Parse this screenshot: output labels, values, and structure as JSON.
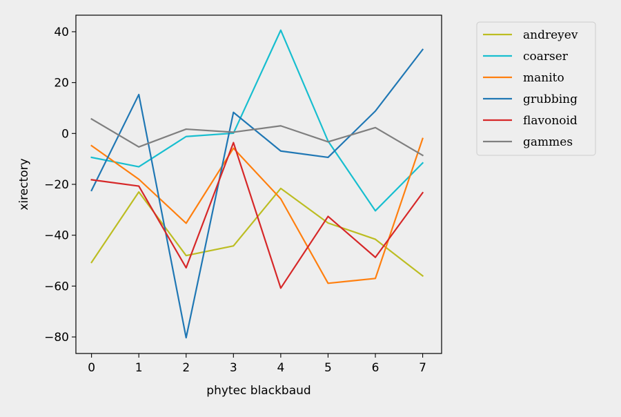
{
  "chart_data": {
    "type": "line",
    "title": "",
    "xlabel": "phytec blackbaud",
    "ylabel": "xirectory",
    "x": [
      0,
      1,
      2,
      3,
      4,
      5,
      6,
      7
    ],
    "xlim": [
      -0.33,
      7.4
    ],
    "ylim": [
      -86.5,
      46.5
    ],
    "xticks": [
      0,
      1,
      2,
      3,
      4,
      5,
      6,
      7
    ],
    "yticks": [
      -80,
      -60,
      -40,
      -20,
      0,
      20,
      40
    ],
    "grid": false,
    "legend_position": "outside top-right",
    "series": [
      {
        "name": "andreyev",
        "color": "#bcbd22",
        "values": [
          -50.7,
          -23.0,
          -48.0,
          -44.2,
          -21.6,
          -35.2,
          -41.6,
          -56.0
        ]
      },
      {
        "name": "coarser",
        "color": "#17becf",
        "values": [
          -9.4,
          -13.1,
          -1.2,
          0.1,
          40.6,
          -3.0,
          -30.4,
          -11.6
        ]
      },
      {
        "name": "manito",
        "color": "#ff7f0e",
        "values": [
          -4.8,
          -18.0,
          -35.3,
          -5.8,
          -25.7,
          -58.9,
          -57.0,
          -2.0
        ]
      },
      {
        "name": "grubbing",
        "color": "#1f77b4",
        "values": [
          -22.4,
          15.3,
          -80.3,
          8.3,
          -6.9,
          -9.4,
          8.8,
          33.0
        ]
      },
      {
        "name": "flavonoid",
        "color": "#d62728",
        "values": [
          -18.2,
          -20.7,
          -52.8,
          -3.6,
          -60.8,
          -32.6,
          -48.7,
          -23.3
        ]
      },
      {
        "name": "gammes",
        "color": "#7f7f7f",
        "values": [
          5.7,
          -5.3,
          1.7,
          0.5,
          3.0,
          -3.3,
          2.3,
          -8.6
        ]
      }
    ]
  }
}
